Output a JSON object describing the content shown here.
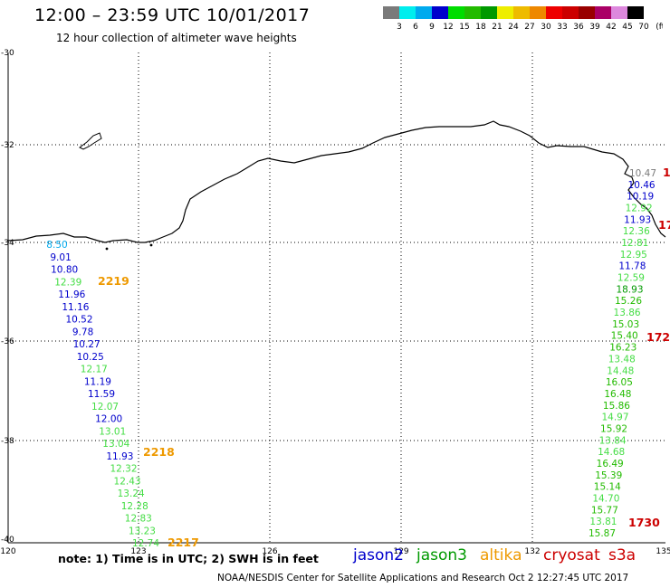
{
  "header": {
    "title": "12:00 – 23:59 UTC 10/01/2017",
    "subtitle": "12 hour collection of altimeter wave heights"
  },
  "legend_scale": {
    "labels": [
      "3",
      "6",
      "9",
      "12",
      "15",
      "18",
      "21",
      "24",
      "27",
      "30",
      "33",
      "36",
      "39",
      "42",
      "45",
      "70",
      "(ft)"
    ],
    "colors": [
      "#7a7a7a",
      "#00eeee",
      "#00aaee",
      "#0000cc",
      "#00dd00",
      "#22bb00",
      "#009900",
      "#eeee00",
      "#eebb00",
      "#ee8800",
      "#ee0000",
      "#cc0000",
      "#990000",
      "#aa0066",
      "#dd88dd",
      "#000000"
    ]
  },
  "axes": {
    "lon_ticks": [
      "120",
      "123",
      "126",
      "129",
      "132",
      "135"
    ],
    "lat_ticks": [
      "-30",
      "-32",
      "-34",
      "-36",
      "-38",
      "-40"
    ]
  },
  "tracks": {
    "west": [
      {
        "v": "8.50",
        "c": "#00aaee"
      },
      {
        "v": "9.01",
        "c": "#0000cc"
      },
      {
        "v": "10.80",
        "c": "#0000cc"
      },
      {
        "v": "12.39",
        "c": "#44dd44"
      },
      {
        "v": "11.96",
        "c": "#0000cc"
      },
      {
        "v": "11.16",
        "c": "#0000cc"
      },
      {
        "v": "10.52",
        "c": "#0000cc"
      },
      {
        "v": "9.78",
        "c": "#0000cc"
      },
      {
        "v": "10.27",
        "c": "#0000cc"
      },
      {
        "v": "10.25",
        "c": "#0000cc"
      },
      {
        "v": "12.17",
        "c": "#44dd44"
      },
      {
        "v": "11.19",
        "c": "#0000cc"
      },
      {
        "v": "11.59",
        "c": "#0000cc"
      },
      {
        "v": "12.07",
        "c": "#44dd44"
      },
      {
        "v": "12.00",
        "c": "#0000cc"
      },
      {
        "v": "13.01",
        "c": "#44dd44"
      },
      {
        "v": "13.04",
        "c": "#44dd44"
      },
      {
        "v": "11.93",
        "c": "#0000cc"
      },
      {
        "v": "12.32",
        "c": "#44dd44"
      },
      {
        "v": "12.43",
        "c": "#44dd44"
      },
      {
        "v": "13.24",
        "c": "#44dd44"
      },
      {
        "v": "12.28",
        "c": "#44dd44"
      },
      {
        "v": "12.83",
        "c": "#44dd44"
      },
      {
        "v": "13.23",
        "c": "#44dd44"
      },
      {
        "v": "12.74",
        "c": "#44dd44"
      }
    ],
    "east": [
      {
        "v": "10.47",
        "c": "#7a7a7a"
      },
      {
        "v": "10.46",
        "c": "#0000cc"
      },
      {
        "v": "10.19",
        "c": "#0000cc"
      },
      {
        "v": "12.92",
        "c": "#44dd44"
      },
      {
        "v": "11.93",
        "c": "#0000cc"
      },
      {
        "v": "12.36",
        "c": "#44dd44"
      },
      {
        "v": "12.81",
        "c": "#44dd44"
      },
      {
        "v": "12.95",
        "c": "#44dd44"
      },
      {
        "v": "11.78",
        "c": "#0000cc"
      },
      {
        "v": "12.59",
        "c": "#44dd44"
      },
      {
        "v": "18.93",
        "c": "#009900"
      },
      {
        "v": "15.26",
        "c": "#22bb00"
      },
      {
        "v": "13.86",
        "c": "#44dd44"
      },
      {
        "v": "15.03",
        "c": "#22bb00"
      },
      {
        "v": "15.40",
        "c": "#22bb00"
      },
      {
        "v": "16.23",
        "c": "#22bb00"
      },
      {
        "v": "13.48",
        "c": "#44dd44"
      },
      {
        "v": "14.48",
        "c": "#44dd44"
      },
      {
        "v": "16.05",
        "c": "#22bb00"
      },
      {
        "v": "16.48",
        "c": "#22bb00"
      },
      {
        "v": "15.86",
        "c": "#22bb00"
      },
      {
        "v": "14.97",
        "c": "#44dd44"
      },
      {
        "v": "15.92",
        "c": "#22bb00"
      },
      {
        "v": "13.84",
        "c": "#44dd44"
      },
      {
        "v": "14.68",
        "c": "#44dd44"
      },
      {
        "v": "16.49",
        "c": "#22bb00"
      },
      {
        "v": "15.39",
        "c": "#22bb00"
      },
      {
        "v": "15.14",
        "c": "#22bb00"
      },
      {
        "v": "14.70",
        "c": "#44dd44"
      },
      {
        "v": "15.77",
        "c": "#22bb00"
      },
      {
        "v": "13.81",
        "c": "#44dd44"
      },
      {
        "v": "15.87",
        "c": "#22bb00"
      }
    ]
  },
  "pass_times": [
    {
      "t": "2219",
      "c": "#ee9900"
    },
    {
      "t": "2218",
      "c": "#ee9900"
    },
    {
      "t": "2217",
      "c": "#ee9900"
    },
    {
      "t": "1730",
      "c": "#cc0000"
    },
    {
      "t": "172",
      "c": "#cc0000"
    },
    {
      "t": "17",
      "c": "#cc0000"
    },
    {
      "t": "1",
      "c": "#cc0000"
    }
  ],
  "footer": {
    "note": "note: 1) Time is in UTC; 2) SWH is in feet",
    "satellites": [
      {
        "name": "jason2",
        "c": "#0000cc"
      },
      {
        "name": "jason3",
        "c": "#009900"
      },
      {
        "name": "altika",
        "c": "#ee9900"
      },
      {
        "name": "cryosat",
        "c": "#cc0000"
      },
      {
        "name": "s3a",
        "c": "#cc0000"
      }
    ],
    "credit": "NOAA/NESDIS Center for Satellite Applications and Research    Oct  2 12:27:45 UTC 2017"
  }
}
